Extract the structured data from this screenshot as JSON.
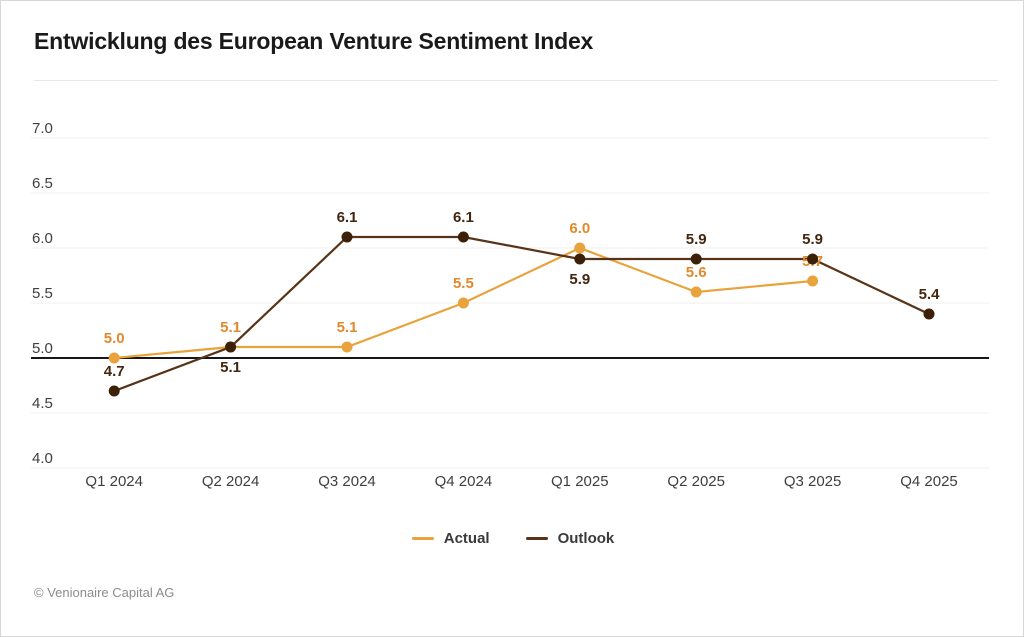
{
  "header": {
    "title": "Entwicklung des European Venture Sentiment Index"
  },
  "chart_data": {
    "type": "line",
    "title": "Entwicklung des European Venture Sentiment Index",
    "categories": [
      "Q1 2024",
      "Q2 2024",
      "Q3 2024",
      "Q4 2024",
      "Q1 2025",
      "Q2 2025",
      "Q3 2025",
      "Q4 2025"
    ],
    "series": [
      {
        "name": "Actual",
        "color": "#E8A33C",
        "dot_color": "#E8A33C",
        "label_color": "#E0892E",
        "values": [
          5.0,
          5.1,
          5.1,
          5.5,
          6.0,
          5.6,
          5.7,
          null
        ],
        "label_positions": [
          "above",
          "above",
          "above",
          "above",
          "above",
          "above",
          "above",
          null
        ]
      },
      {
        "name": "Outlook",
        "color": "#573317",
        "dot_color": "#3C2008",
        "label_color": "#43260F",
        "values": [
          4.7,
          5.1,
          6.1,
          6.1,
          5.9,
          5.9,
          5.9,
          5.4
        ],
        "label_positions": [
          "above",
          "below",
          "above",
          "above",
          "below",
          "above",
          "above",
          "above"
        ]
      }
    ],
    "yticks": [
      7.0,
      6.5,
      6.0,
      5.5,
      5.0,
      4.5,
      4.0
    ],
    "ylim": [
      4.0,
      7.0
    ],
    "baseline": 5.0,
    "grid": true,
    "legend_position": "bottom",
    "colors": {
      "gridline": "#efefef",
      "baseline": "#161616",
      "axis_text": "#3f3f3f"
    }
  },
  "legend": {
    "items": [
      {
        "label": "Actual",
        "color": "#E8A33C"
      },
      {
        "label": "Outlook",
        "color": "#573317"
      }
    ]
  },
  "footer": {
    "copyright": "© Venionaire Capital AG"
  }
}
